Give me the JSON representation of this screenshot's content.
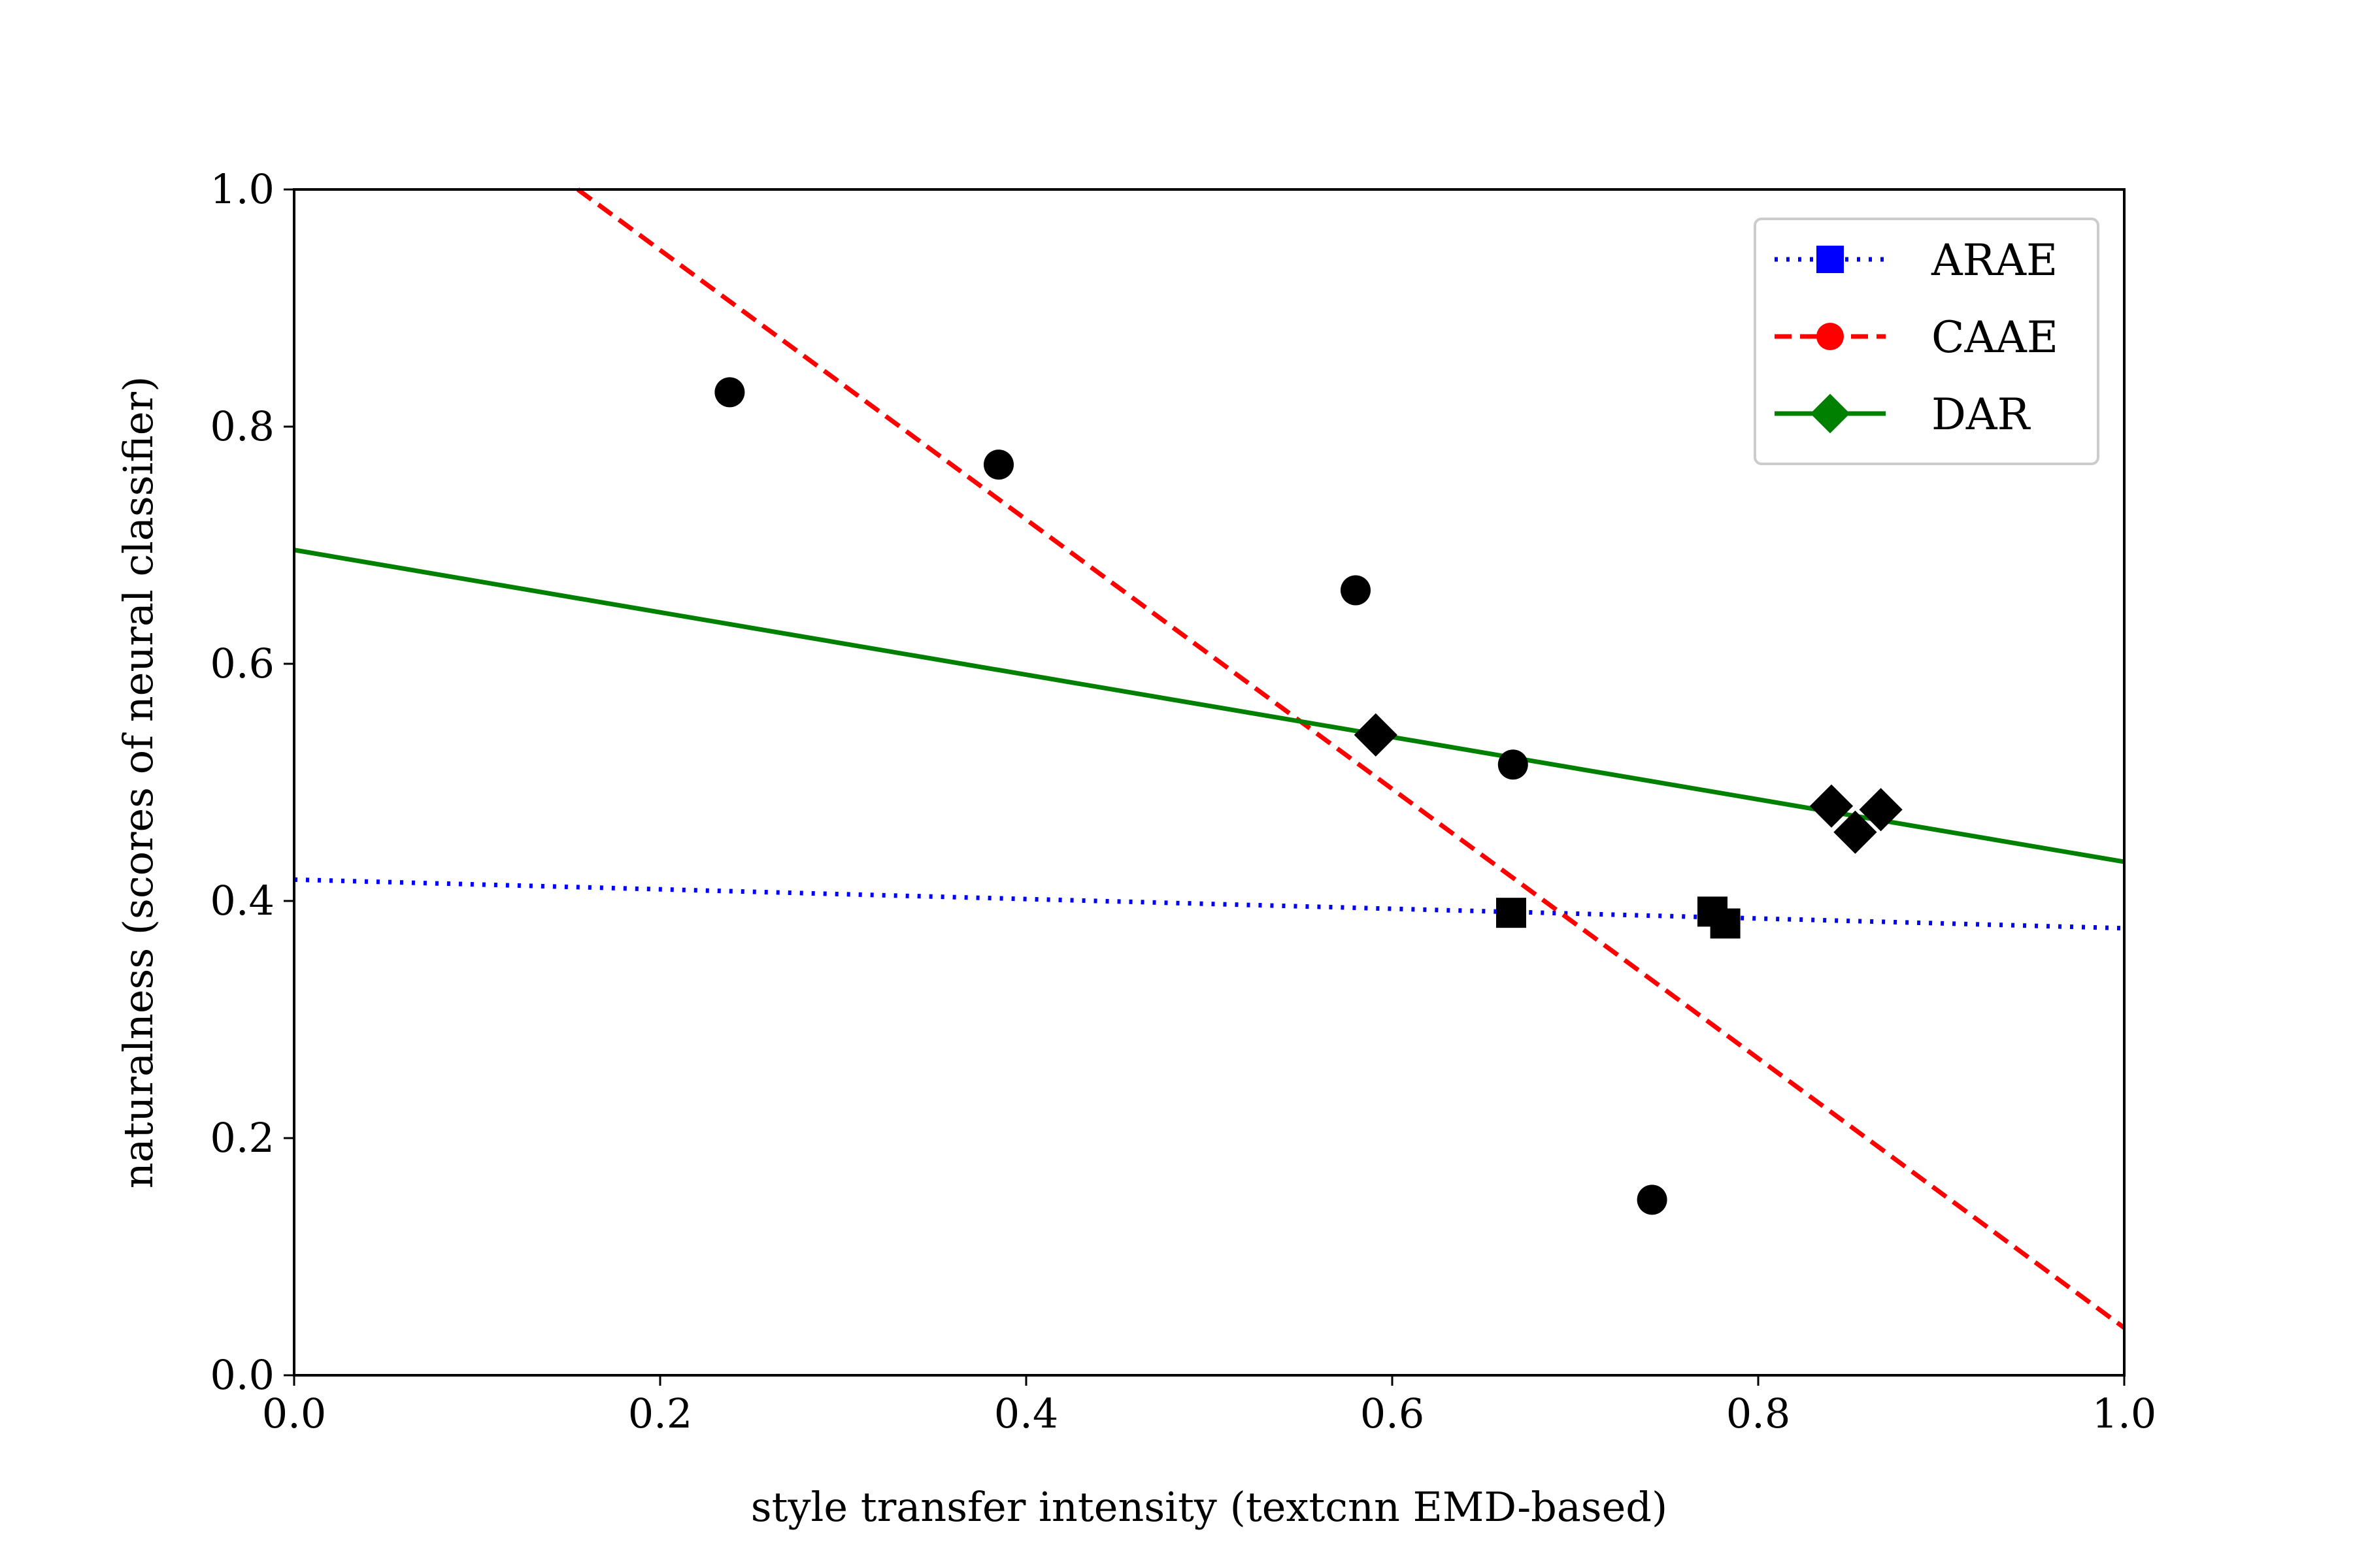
{
  "chart_data": {
    "type": "scatter",
    "xlabel": "style transfer intensity (textcnn EMD-based)",
    "ylabel": "naturalness (scores of neural classifier)",
    "xlim": [
      0.0,
      1.0
    ],
    "ylim": [
      0.0,
      1.0
    ],
    "x_ticks": [
      "0.0",
      "0.2",
      "0.4",
      "0.6",
      "0.8",
      "1.0"
    ],
    "y_ticks": [
      "0.0",
      "0.2",
      "0.4",
      "0.6",
      "0.8",
      "1.0"
    ],
    "grid": false,
    "legend_position": "top-right",
    "series": [
      {
        "name": "ARAE",
        "color": "#0000ff",
        "line_style": "dotted",
        "marker": "square",
        "fit_line": {
          "x": [
            0.0,
            1.0
          ],
          "y": [
            0.418,
            0.377
          ]
        },
        "points": [
          {
            "x": 0.665,
            "y": 0.39
          },
          {
            "x": 0.775,
            "y": 0.391
          },
          {
            "x": 0.782,
            "y": 0.381
          }
        ]
      },
      {
        "name": "CAAE",
        "color": "#ff0000",
        "line_style": "dashed",
        "marker": "circle",
        "fit_line": {
          "x": [
            0.155,
            1.0
          ],
          "y": [
            1.0,
            0.04
          ]
        },
        "points": [
          {
            "x": 0.238,
            "y": 0.829
          },
          {
            "x": 0.385,
            "y": 0.768
          },
          {
            "x": 0.58,
            "y": 0.662
          },
          {
            "x": 0.666,
            "y": 0.515
          },
          {
            "x": 0.742,
            "y": 0.148
          }
        ]
      },
      {
        "name": "DAR",
        "color": "#008000",
        "line_style": "solid",
        "marker": "diamond",
        "fit_line": {
          "x": [
            0.0,
            1.0
          ],
          "y": [
            0.696,
            0.433
          ]
        },
        "points": [
          {
            "x": 0.591,
            "y": 0.54
          },
          {
            "x": 0.84,
            "y": 0.48
          },
          {
            "x": 0.853,
            "y": 0.458
          },
          {
            "x": 0.867,
            "y": 0.477
          }
        ]
      }
    ]
  }
}
